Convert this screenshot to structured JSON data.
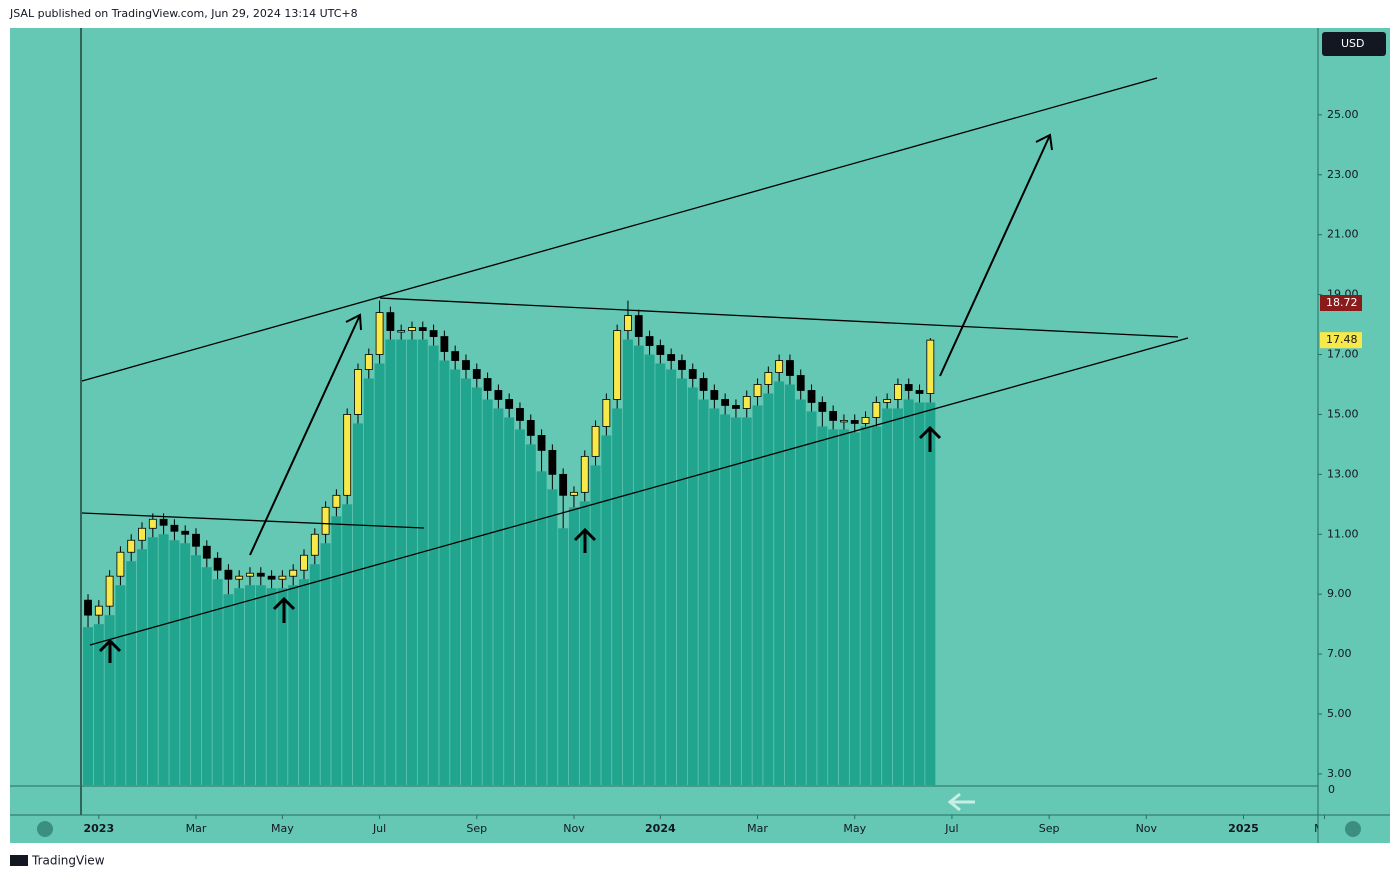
{
  "header": {
    "text": "JSAL published on TradingView.com, Jun 29, 2024 13:14 UTC+8"
  },
  "footer": {
    "brand": "TradingView"
  },
  "chart_data": {
    "type": "candlestick",
    "currency": "USD",
    "indicator_axis_label": "0",
    "up_color": "#f7e94a",
    "down_color": "#000000",
    "column_color": "#22a58e",
    "grid": false,
    "ylim": [
      2.63,
      27.9
    ],
    "yticks": [
      {
        "value": 3,
        "label": "3.00"
      },
      {
        "value": 5,
        "label": "5.00"
      },
      {
        "value": 7,
        "label": "7.00"
      },
      {
        "value": 9,
        "label": "9.00"
      },
      {
        "value": 11,
        "label": "11.00"
      },
      {
        "value": 13,
        "label": "13.00"
      },
      {
        "value": 15,
        "label": "15.00"
      },
      {
        "value": 17,
        "label": "17.00"
      },
      {
        "value": 19,
        "label": "19.00"
      },
      {
        "value": 21,
        "label": "21.00"
      },
      {
        "value": 23,
        "label": "23.00"
      },
      {
        "value": 25,
        "label": "25.00"
      }
    ],
    "xlim": [
      -0.65,
      113.9
    ],
    "xticks": [
      {
        "value": 1,
        "label": "2023"
      },
      {
        "value": 10,
        "label": "Mar"
      },
      {
        "value": 18,
        "label": "May"
      },
      {
        "value": 27,
        "label": "Jul"
      },
      {
        "value": 36,
        "label": "Sep"
      },
      {
        "value": 45,
        "label": "Nov"
      },
      {
        "value": 53,
        "label": "2024"
      },
      {
        "value": 62,
        "label": "Mar"
      },
      {
        "value": 71,
        "label": "May"
      },
      {
        "value": 80,
        "label": "Jul"
      },
      {
        "value": 89,
        "label": "Sep"
      },
      {
        "value": 98,
        "label": "Nov"
      },
      {
        "value": 107,
        "label": "2025"
      },
      {
        "value": 114.5,
        "label": "Mar"
      }
    ],
    "price_lines": [
      {
        "value": 18.72,
        "color": "#8b1a1a"
      }
    ],
    "open": [
      8.8,
      8.3,
      8.6,
      9.6,
      10.4,
      10.8,
      11.2,
      11.5,
      11.3,
      11.1,
      11.0,
      10.6,
      10.2,
      9.8,
      9.5,
      9.6,
      9.7,
      9.6,
      9.5,
      9.6,
      9.8,
      10.3,
      11.0,
      11.9,
      12.3,
      15.0,
      16.5,
      17.0,
      18.4,
      17.8,
      17.8,
      17.9,
      17.8,
      17.6,
      17.1,
      16.8,
      16.5,
      16.2,
      15.8,
      15.5,
      15.2,
      14.8,
      14.3,
      13.8,
      13.0,
      12.3,
      12.4,
      13.6,
      14.6,
      15.5,
      17.8,
      18.3,
      17.6,
      17.3,
      17.0,
      16.8,
      16.5,
      16.2,
      15.8,
      15.5,
      15.3,
      15.2,
      15.6,
      16.0,
      16.4,
      16.8,
      16.3,
      15.8,
      15.4,
      15.1,
      14.8,
      14.8,
      14.7,
      14.9,
      15.4,
      15.5,
      16.0,
      15.8,
      15.7
    ],
    "high": [
      9.0,
      8.8,
      9.8,
      10.6,
      11.0,
      11.4,
      11.7,
      11.7,
      11.5,
      11.3,
      11.2,
      10.8,
      10.4,
      10.0,
      9.8,
      9.9,
      9.9,
      9.8,
      9.8,
      10.0,
      10.5,
      11.2,
      12.1,
      12.5,
      15.2,
      16.7,
      17.2,
      18.8,
      18.6,
      18.0,
      18.1,
      18.1,
      18.0,
      17.8,
      17.3,
      17.0,
      16.7,
      16.4,
      16.0,
      15.7,
      15.4,
      15.0,
      14.5,
      14.0,
      13.2,
      12.6,
      13.8,
      14.8,
      15.7,
      18.0,
      18.8,
      18.5,
      17.8,
      17.5,
      17.2,
      17.0,
      16.7,
      16.4,
      16.0,
      15.7,
      15.5,
      15.8,
      16.2,
      16.6,
      17.0,
      17.0,
      16.5,
      16.0,
      15.6,
      15.3,
      15.0,
      15.0,
      15.1,
      15.6,
      15.7,
      16.2,
      16.2,
      16.0,
      17.55
    ],
    "low": [
      7.9,
      8.0,
      8.3,
      9.3,
      10.1,
      10.5,
      10.9,
      11.0,
      10.8,
      10.7,
      10.3,
      9.9,
      9.5,
      9.0,
      9.2,
      9.3,
      9.3,
      9.2,
      9.2,
      9.3,
      9.5,
      10.0,
      10.7,
      11.6,
      12.0,
      14.7,
      16.2,
      16.7,
      17.5,
      17.5,
      17.5,
      17.5,
      17.3,
      16.8,
      16.5,
      16.2,
      15.9,
      15.5,
      15.2,
      14.9,
      14.5,
      14.0,
      13.1,
      12.5,
      11.2,
      11.9,
      12.1,
      13.3,
      14.3,
      15.2,
      17.5,
      17.3,
      17.0,
      16.7,
      16.5,
      16.2,
      15.9,
      15.5,
      15.2,
      15.0,
      14.9,
      14.9,
      15.3,
      15.7,
      16.1,
      16.0,
      15.5,
      15.1,
      14.6,
      14.5,
      14.5,
      14.4,
      14.6,
      14.6,
      15.2,
      15.2,
      15.5,
      15.4,
      15.4
    ],
    "close": [
      8.3,
      8.6,
      9.6,
      10.4,
      10.8,
      11.2,
      11.5,
      11.3,
      11.1,
      11.0,
      10.6,
      10.2,
      9.8,
      9.5,
      9.6,
      9.7,
      9.6,
      9.5,
      9.6,
      9.8,
      10.3,
      11.0,
      11.9,
      12.3,
      15.0,
      16.5,
      17.0,
      18.4,
      17.8,
      17.8,
      17.9,
      17.8,
      17.6,
      17.1,
      16.8,
      16.5,
      16.2,
      15.8,
      15.5,
      15.2,
      14.8,
      14.3,
      13.8,
      13.0,
      12.3,
      12.4,
      13.6,
      14.6,
      15.5,
      17.8,
      18.3,
      17.6,
      17.3,
      17.0,
      16.8,
      16.5,
      16.2,
      15.8,
      15.5,
      15.3,
      15.2,
      15.6,
      16.0,
      16.4,
      16.8,
      16.3,
      15.8,
      15.4,
      15.1,
      14.8,
      14.8,
      14.7,
      14.9,
      15.4,
      15.5,
      16.0,
      15.8,
      15.7,
      17.48
    ]
  }
}
